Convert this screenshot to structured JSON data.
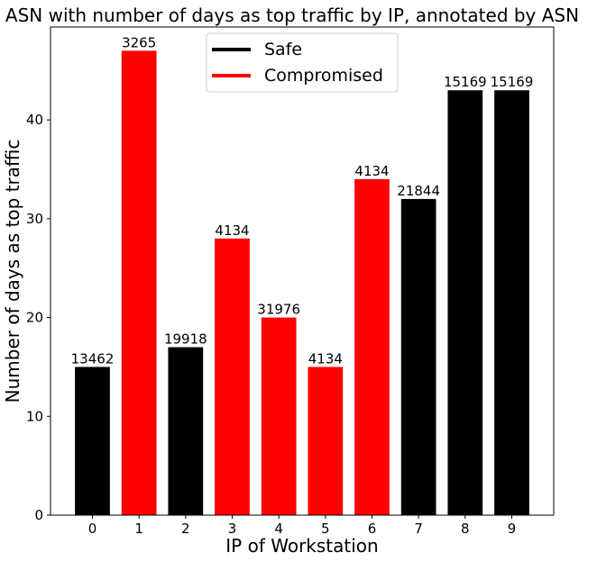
{
  "chart_data": {
    "type": "bar",
    "title": "ASN with number of days as top traffic by IP, annotated by ASN",
    "xlabel": "IP of Workstation",
    "ylabel": "Number of days as top traffic",
    "categories": [
      "0",
      "1",
      "2",
      "3",
      "4",
      "5",
      "6",
      "7",
      "8",
      "9"
    ],
    "values": [
      15,
      47,
      17,
      28,
      20,
      15,
      34,
      32,
      43,
      43
    ],
    "annotations": [
      "13462",
      "3265",
      "19918",
      "4134",
      "31976",
      "4134",
      "4134",
      "21844",
      "15169",
      "15169"
    ],
    "status": [
      "Safe",
      "Compromised",
      "Safe",
      "Compromised",
      "Compromised",
      "Compromised",
      "Compromised",
      "Safe",
      "Safe",
      "Safe"
    ],
    "ylim": [
      0,
      49.4
    ],
    "yticks": [
      "0",
      "10",
      "20",
      "30",
      "40"
    ],
    "grid": false,
    "legend": {
      "placement": "top-center",
      "entries": [
        {
          "name": "Safe",
          "color": "#000000"
        },
        {
          "name": "Compromised",
          "color": "#ff0000"
        }
      ]
    }
  }
}
